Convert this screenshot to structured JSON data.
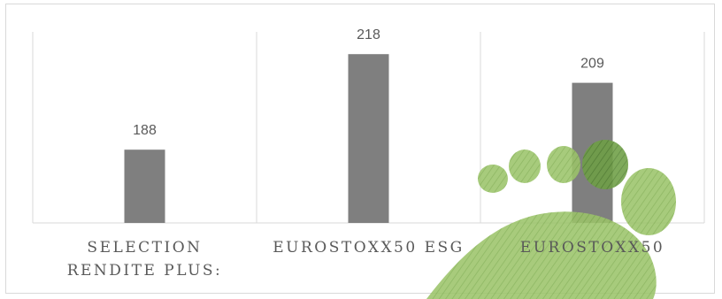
{
  "chart_data": {
    "type": "bar",
    "categories": [
      [
        "SELECTION",
        "RENDITE PLUS:"
      ],
      [
        "EUROSTOXX50 ESG"
      ],
      [
        "EUROSTOXX50"
      ]
    ],
    "values": [
      188,
      218,
      209
    ],
    "data_labels": [
      "188",
      "218",
      "209"
    ],
    "ylim": [
      165,
      225
    ],
    "grid": "vertical-category-separators",
    "legend": "none",
    "bar_color": "#7f7f7f",
    "footprint_color": "#8fba5e",
    "footprint_dark_color": "#5e8f3a"
  }
}
